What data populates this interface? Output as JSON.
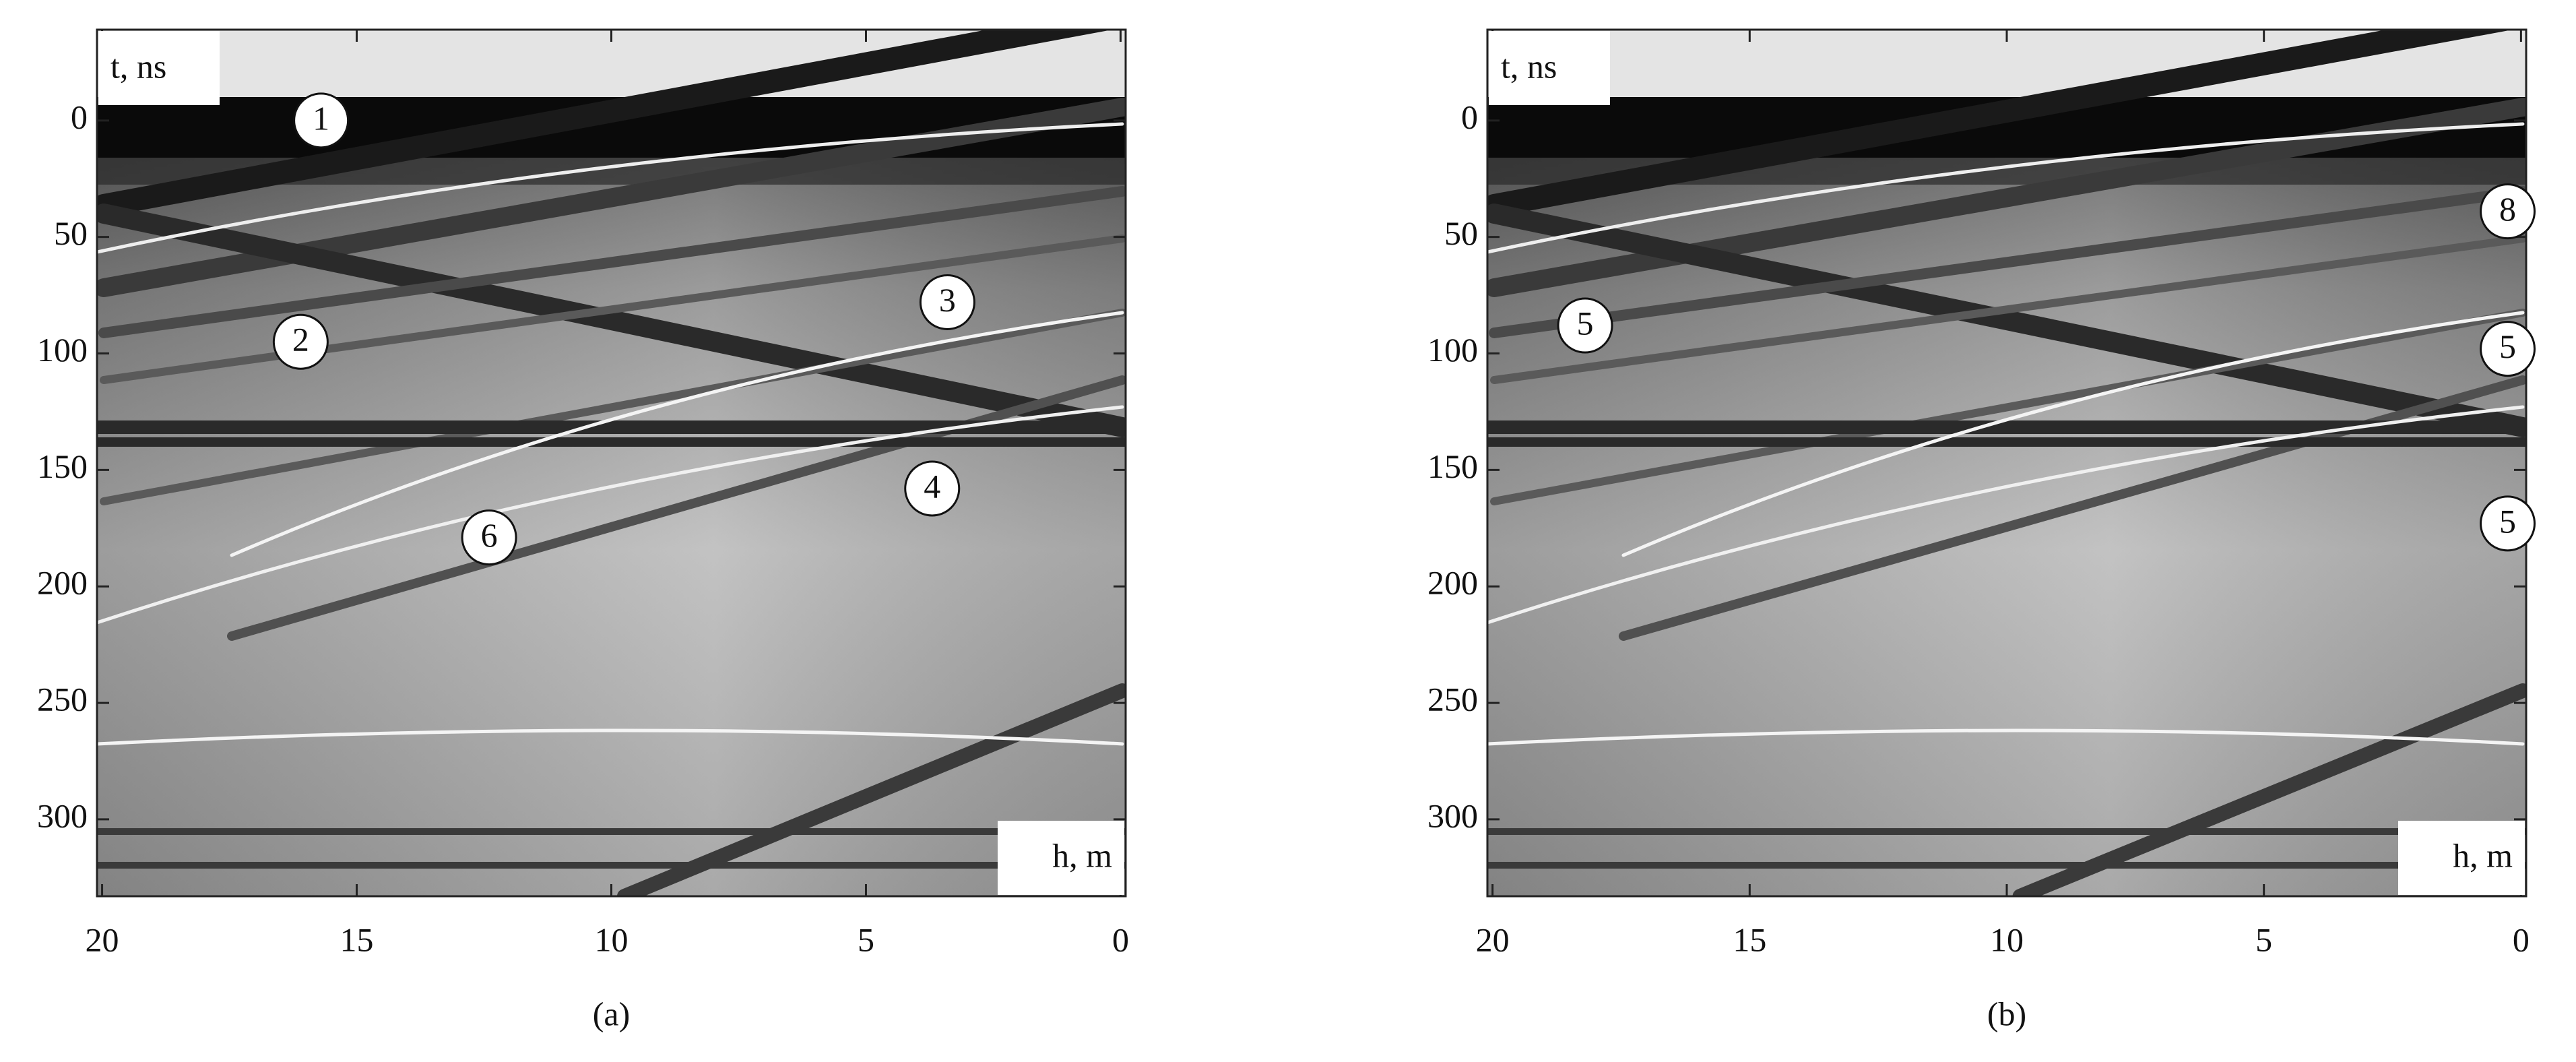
{
  "chart_data": [
    {
      "type": "radargram",
      "caption": "(a)",
      "y_label": "t, ns",
      "x_label": "h, m",
      "xlim": [
        20.1,
        -0.1
      ],
      "ylim": [
        -39,
        333
      ],
      "xticks": [
        20,
        15,
        10,
        5,
        0
      ],
      "yticks": [
        0,
        50,
        100,
        150,
        200,
        250,
        300
      ],
      "annotations": [
        {
          "text": "1",
          "x": 15.7,
          "y": 0
        },
        {
          "text": "2",
          "x": 16.1,
          "y": 95
        },
        {
          "text": "3",
          "x": 3.4,
          "y": 78
        },
        {
          "text": "4",
          "x": 3.7,
          "y": 158
        },
        {
          "text": "6",
          "x": 12.4,
          "y": 179
        }
      ]
    },
    {
      "type": "radargram",
      "caption": "(b)",
      "y_label": "t, ns",
      "x_label": "h, m",
      "xlim": [
        20.1,
        -0.1
      ],
      "ylim": [
        -39,
        333
      ],
      "xticks": [
        20,
        15,
        10,
        5,
        0
      ],
      "yticks": [
        0,
        50,
        100,
        150,
        200,
        250,
        300
      ],
      "annotations": [
        {
          "text": "8",
          "x": 0.26,
          "y": 39
        },
        {
          "text": "5",
          "x": 18.2,
          "y": 88
        },
        {
          "text": "5",
          "x": 0.26,
          "y": 98
        },
        {
          "text": "5",
          "x": 0.26,
          "y": 173
        }
      ]
    }
  ]
}
